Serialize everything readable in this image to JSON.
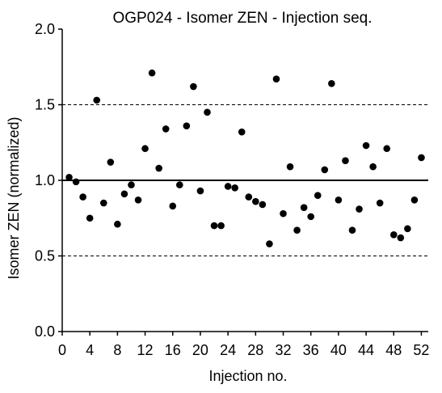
{
  "chart_data": {
    "type": "scatter",
    "title": "OGP024 - Isomer ZEN -  Injection seq.",
    "xlabel": "Injection no.",
    "ylabel": "Isomer ZEN (normalized)",
    "xlim": [
      0,
      53
    ],
    "ylim": [
      0,
      2
    ],
    "x_ticks": [
      0,
      4,
      8,
      12,
      16,
      20,
      24,
      28,
      32,
      36,
      40,
      44,
      48,
      52
    ],
    "y_ticks": [
      "0.0",
      "0.5",
      "1.0",
      "1.5",
      "2.0"
    ],
    "reference_line": 1.0,
    "dashed_gridlines": [
      0.5,
      1.5
    ],
    "series": [
      {
        "marker_color": "#000000",
        "points": [
          {
            "x": 1,
            "y": 1.02
          },
          {
            "x": 2,
            "y": 0.99
          },
          {
            "x": 3,
            "y": 0.89
          },
          {
            "x": 4,
            "y": 0.75
          },
          {
            "x": 5,
            "y": 1.53
          },
          {
            "x": 6,
            "y": 0.85
          },
          {
            "x": 7,
            "y": 1.12
          },
          {
            "x": 8,
            "y": 0.71
          },
          {
            "x": 9,
            "y": 0.91
          },
          {
            "x": 10,
            "y": 0.97
          },
          {
            "x": 11,
            "y": 0.87
          },
          {
            "x": 12,
            "y": 1.21
          },
          {
            "x": 13,
            "y": 1.71
          },
          {
            "x": 14,
            "y": 1.08
          },
          {
            "x": 15,
            "y": 1.34
          },
          {
            "x": 16,
            "y": 0.83
          },
          {
            "x": 17,
            "y": 0.97
          },
          {
            "x": 18,
            "y": 1.36
          },
          {
            "x": 19,
            "y": 1.62
          },
          {
            "x": 20,
            "y": 0.93
          },
          {
            "x": 21,
            "y": 1.45
          },
          {
            "x": 22,
            "y": 0.7
          },
          {
            "x": 23,
            "y": 0.7
          },
          {
            "x": 24,
            "y": 0.96
          },
          {
            "x": 25,
            "y": 0.95
          },
          {
            "x": 26,
            "y": 1.32
          },
          {
            "x": 27,
            "y": 0.89
          },
          {
            "x": 28,
            "y": 0.86
          },
          {
            "x": 29,
            "y": 0.84
          },
          {
            "x": 30,
            "y": 0.58
          },
          {
            "x": 31,
            "y": 1.67
          },
          {
            "x": 32,
            "y": 0.78
          },
          {
            "x": 33,
            "y": 1.09
          },
          {
            "x": 34,
            "y": 0.67
          },
          {
            "x": 35,
            "y": 0.82
          },
          {
            "x": 36,
            "y": 0.76
          },
          {
            "x": 37,
            "y": 0.9
          },
          {
            "x": 38,
            "y": 1.07
          },
          {
            "x": 39,
            "y": 1.64
          },
          {
            "x": 40,
            "y": 0.87
          },
          {
            "x": 41,
            "y": 1.13
          },
          {
            "x": 42,
            "y": 0.67
          },
          {
            "x": 43,
            "y": 0.81
          },
          {
            "x": 44,
            "y": 1.23
          },
          {
            "x": 45,
            "y": 1.09
          },
          {
            "x": 46,
            "y": 0.85
          },
          {
            "x": 47,
            "y": 1.21
          },
          {
            "x": 48,
            "y": 0.64
          },
          {
            "x": 49,
            "y": 0.62
          },
          {
            "x": 50,
            "y": 0.68
          },
          {
            "x": 51,
            "y": 0.87
          },
          {
            "x": 52,
            "y": 1.15
          }
        ]
      }
    ]
  }
}
